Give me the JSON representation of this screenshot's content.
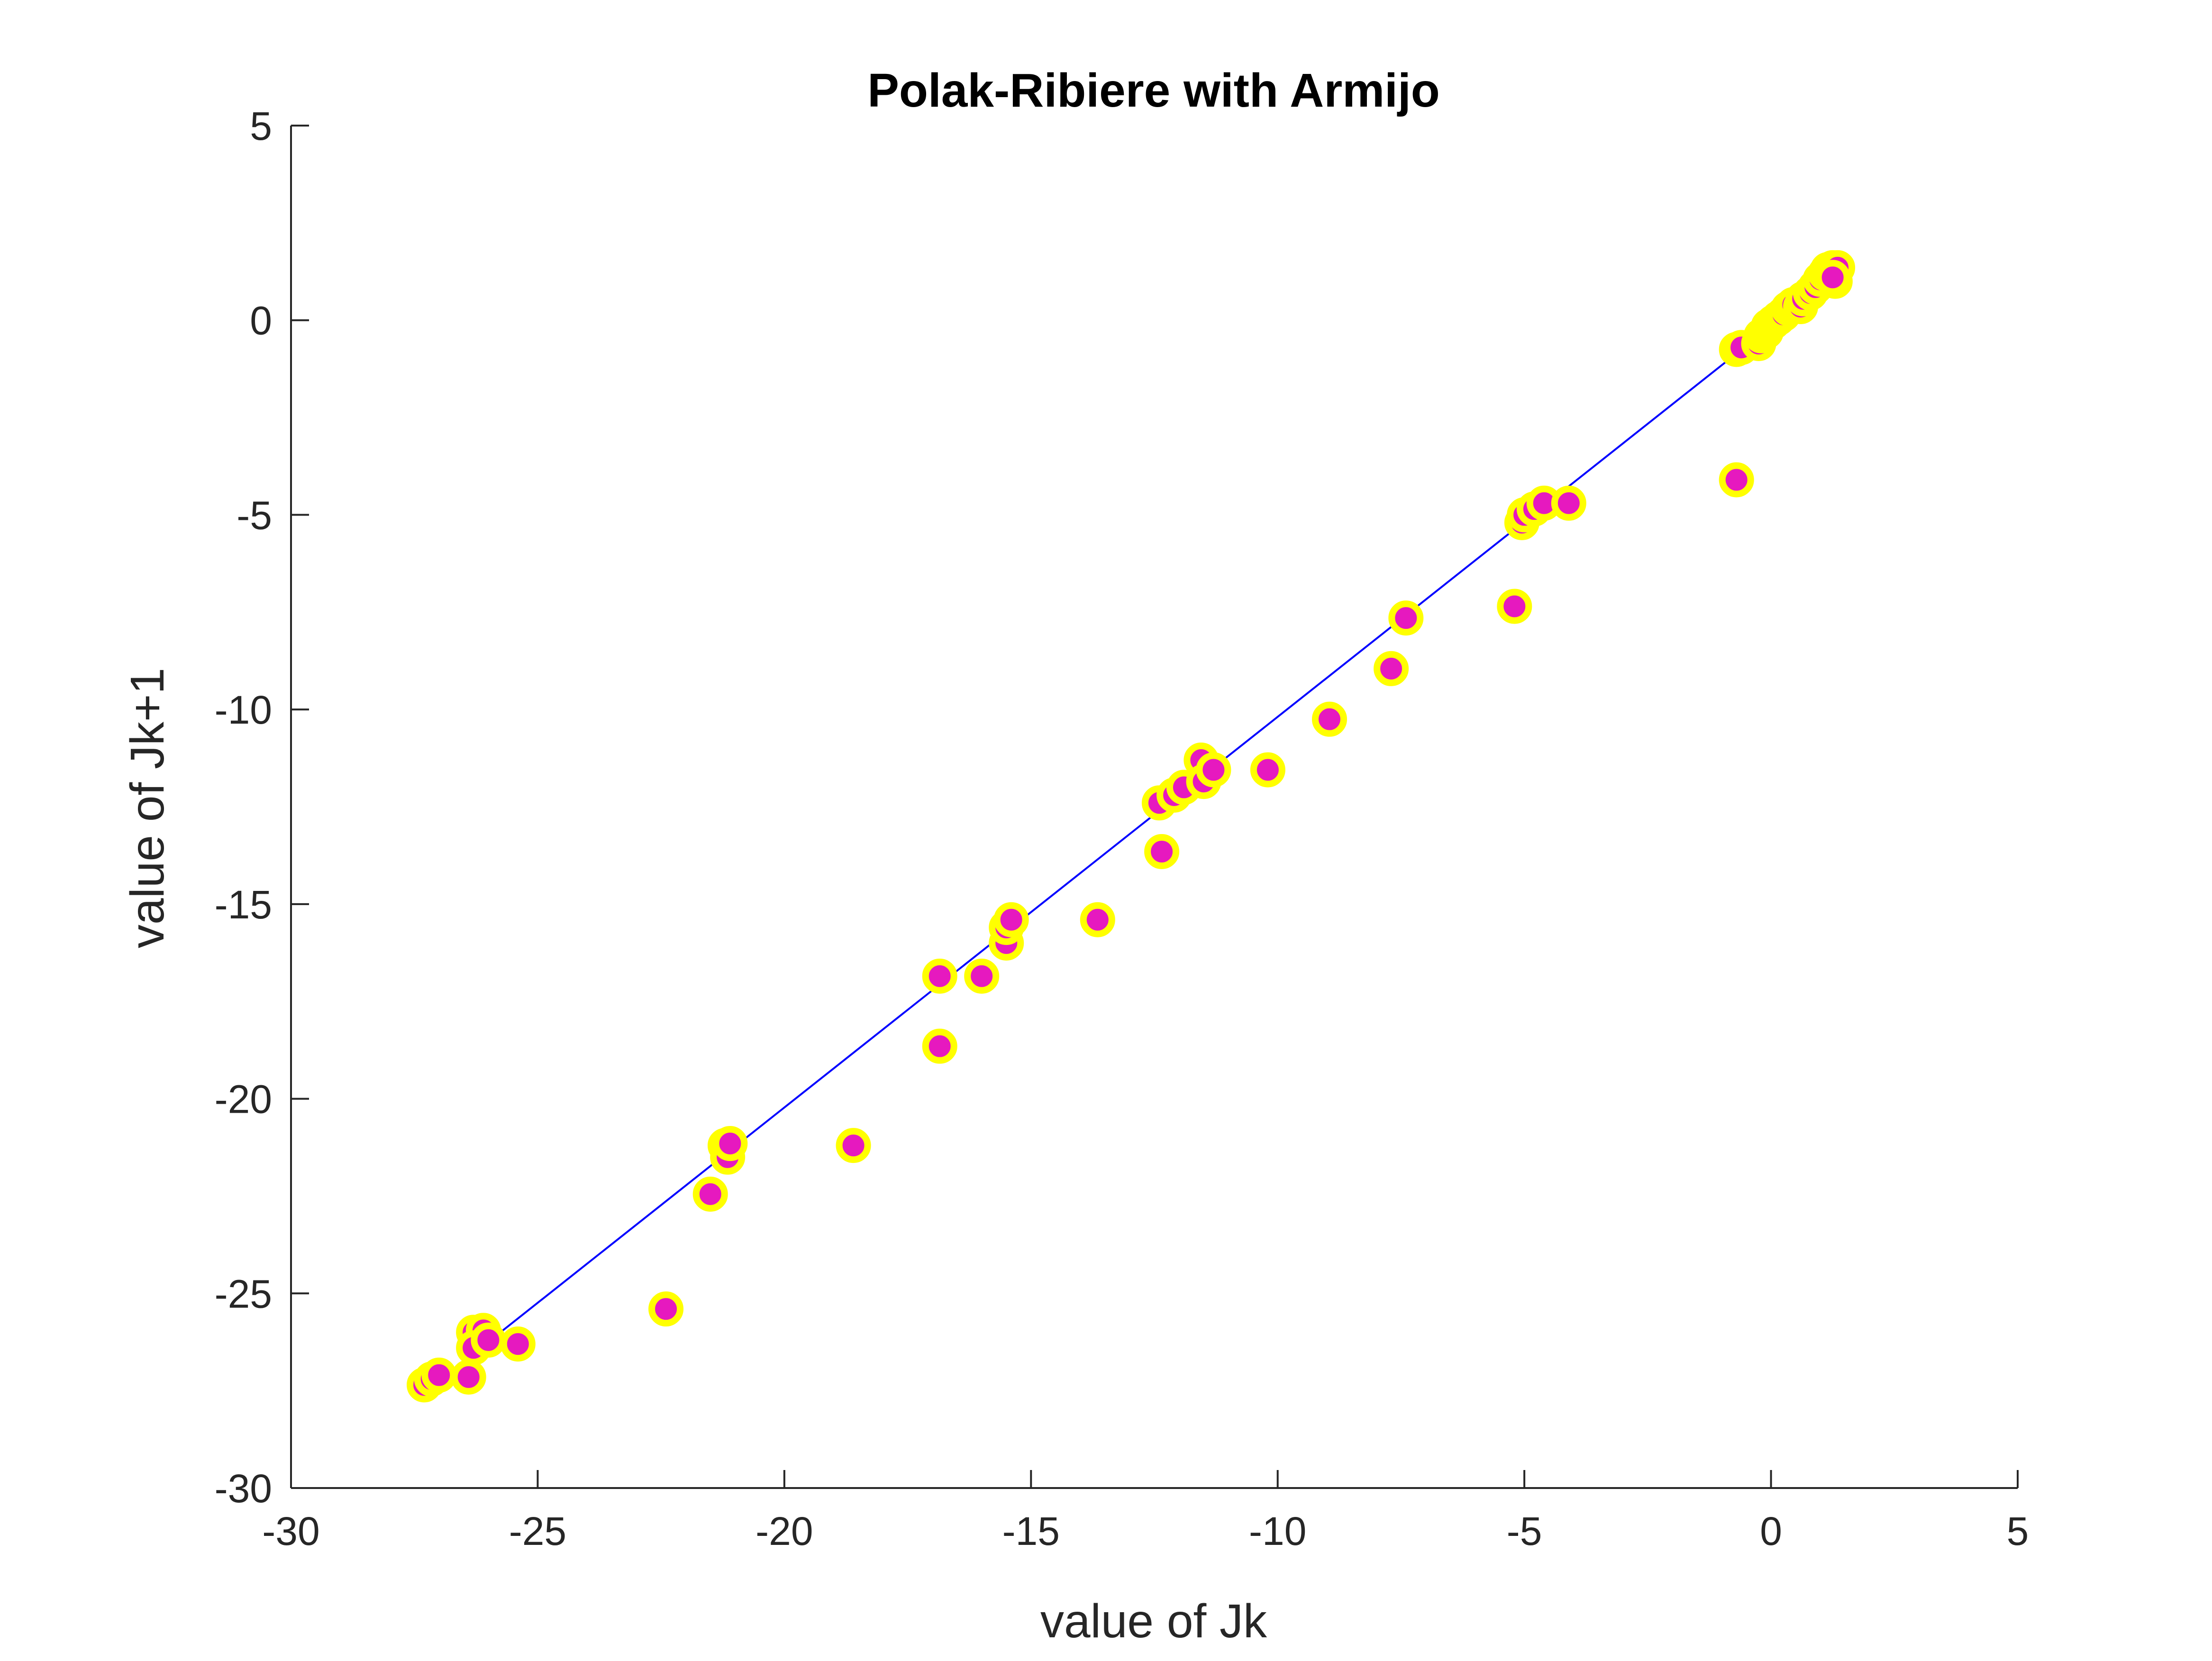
{
  "chart_data": {
    "type": "scatter",
    "title": "Polak-Ribiere with Armijo",
    "xlabel": "value of Jk",
    "ylabel": "value of Jk+1",
    "xlim": [
      -30,
      5
    ],
    "ylim": [
      -30,
      5
    ],
    "xticks": [
      -30,
      -25,
      -20,
      -15,
      -10,
      -5,
      0,
      5
    ],
    "yticks": [
      -30,
      -25,
      -20,
      -15,
      -10,
      -5,
      0,
      5
    ],
    "xtick_labels": [
      "-30",
      "-25",
      "-20",
      "-15",
      "-10",
      "-5",
      "0",
      "5"
    ],
    "ytick_labels": [
      "-30",
      "-25",
      "-20",
      "-15",
      "-10",
      "-5",
      "0",
      "5"
    ],
    "grid": false,
    "series": [
      {
        "marker_fill": "#e619bf",
        "marker_edge": "#ffff00",
        "points": [
          [
            -27.3,
            -27.35
          ],
          [
            -27.15,
            -27.2
          ],
          [
            -27.0,
            -27.1
          ],
          [
            -26.4,
            -27.15
          ],
          [
            -26.3,
            -26.0
          ],
          [
            -26.1,
            -25.95
          ],
          [
            -26.3,
            -26.4
          ],
          [
            -26.0,
            -26.2
          ],
          [
            -25.4,
            -26.3
          ],
          [
            -22.4,
            -25.4
          ],
          [
            -21.5,
            -22.45
          ],
          [
            -21.2,
            -21.2
          ],
          [
            -21.15,
            -21.5
          ],
          [
            -21.1,
            -21.15
          ],
          [
            -18.6,
            -21.2
          ],
          [
            -16.85,
            -16.85
          ],
          [
            -16.85,
            -18.65
          ],
          [
            -16.0,
            -16.85
          ],
          [
            -15.5,
            -16.0
          ],
          [
            -15.5,
            -15.6
          ],
          [
            -15.4,
            -15.4
          ],
          [
            -13.65,
            -15.4
          ],
          [
            -12.4,
            -12.4
          ],
          [
            -12.35,
            -13.65
          ],
          [
            -12.1,
            -12.2
          ],
          [
            -11.9,
            -12.0
          ],
          [
            -11.55,
            -11.3
          ],
          [
            -11.5,
            -11.85
          ],
          [
            -11.3,
            -11.55
          ],
          [
            -10.2,
            -11.55
          ],
          [
            -8.95,
            -10.25
          ],
          [
            -7.7,
            -8.95
          ],
          [
            -7.4,
            -7.65
          ],
          [
            -5.2,
            -7.35
          ],
          [
            -5.05,
            -5.2
          ],
          [
            -5.0,
            -5.0
          ],
          [
            -4.8,
            -4.85
          ],
          [
            -4.6,
            -4.7
          ],
          [
            -4.1,
            -4.7
          ],
          [
            -0.7,
            -0.75
          ],
          [
            -0.6,
            -0.7
          ],
          [
            -0.7,
            -4.1
          ],
          [
            -0.25,
            -0.6
          ],
          [
            -0.2,
            -0.4
          ],
          [
            -0.1,
            -0.3
          ],
          [
            -0.05,
            -0.15
          ],
          [
            0.05,
            -0.05
          ],
          [
            0.15,
            0.05
          ],
          [
            0.25,
            0.15
          ],
          [
            0.35,
            0.3
          ],
          [
            0.45,
            0.4
          ],
          [
            0.6,
            0.35
          ],
          [
            0.65,
            0.55
          ],
          [
            0.8,
            0.7
          ],
          [
            0.9,
            0.85
          ],
          [
            1.0,
            1.05
          ],
          [
            1.1,
            1.2
          ],
          [
            1.15,
            1.3
          ],
          [
            1.25,
            1.35
          ],
          [
            1.3,
            1.25
          ],
          [
            1.35,
            1.35
          ],
          [
            1.3,
            1.0
          ],
          [
            1.25,
            1.1
          ]
        ]
      }
    ],
    "reference_line": {
      "color": "#0000ff",
      "x": [
        -27.2,
        0.75
      ],
      "y": [
        -27.45,
        0.6
      ]
    }
  }
}
